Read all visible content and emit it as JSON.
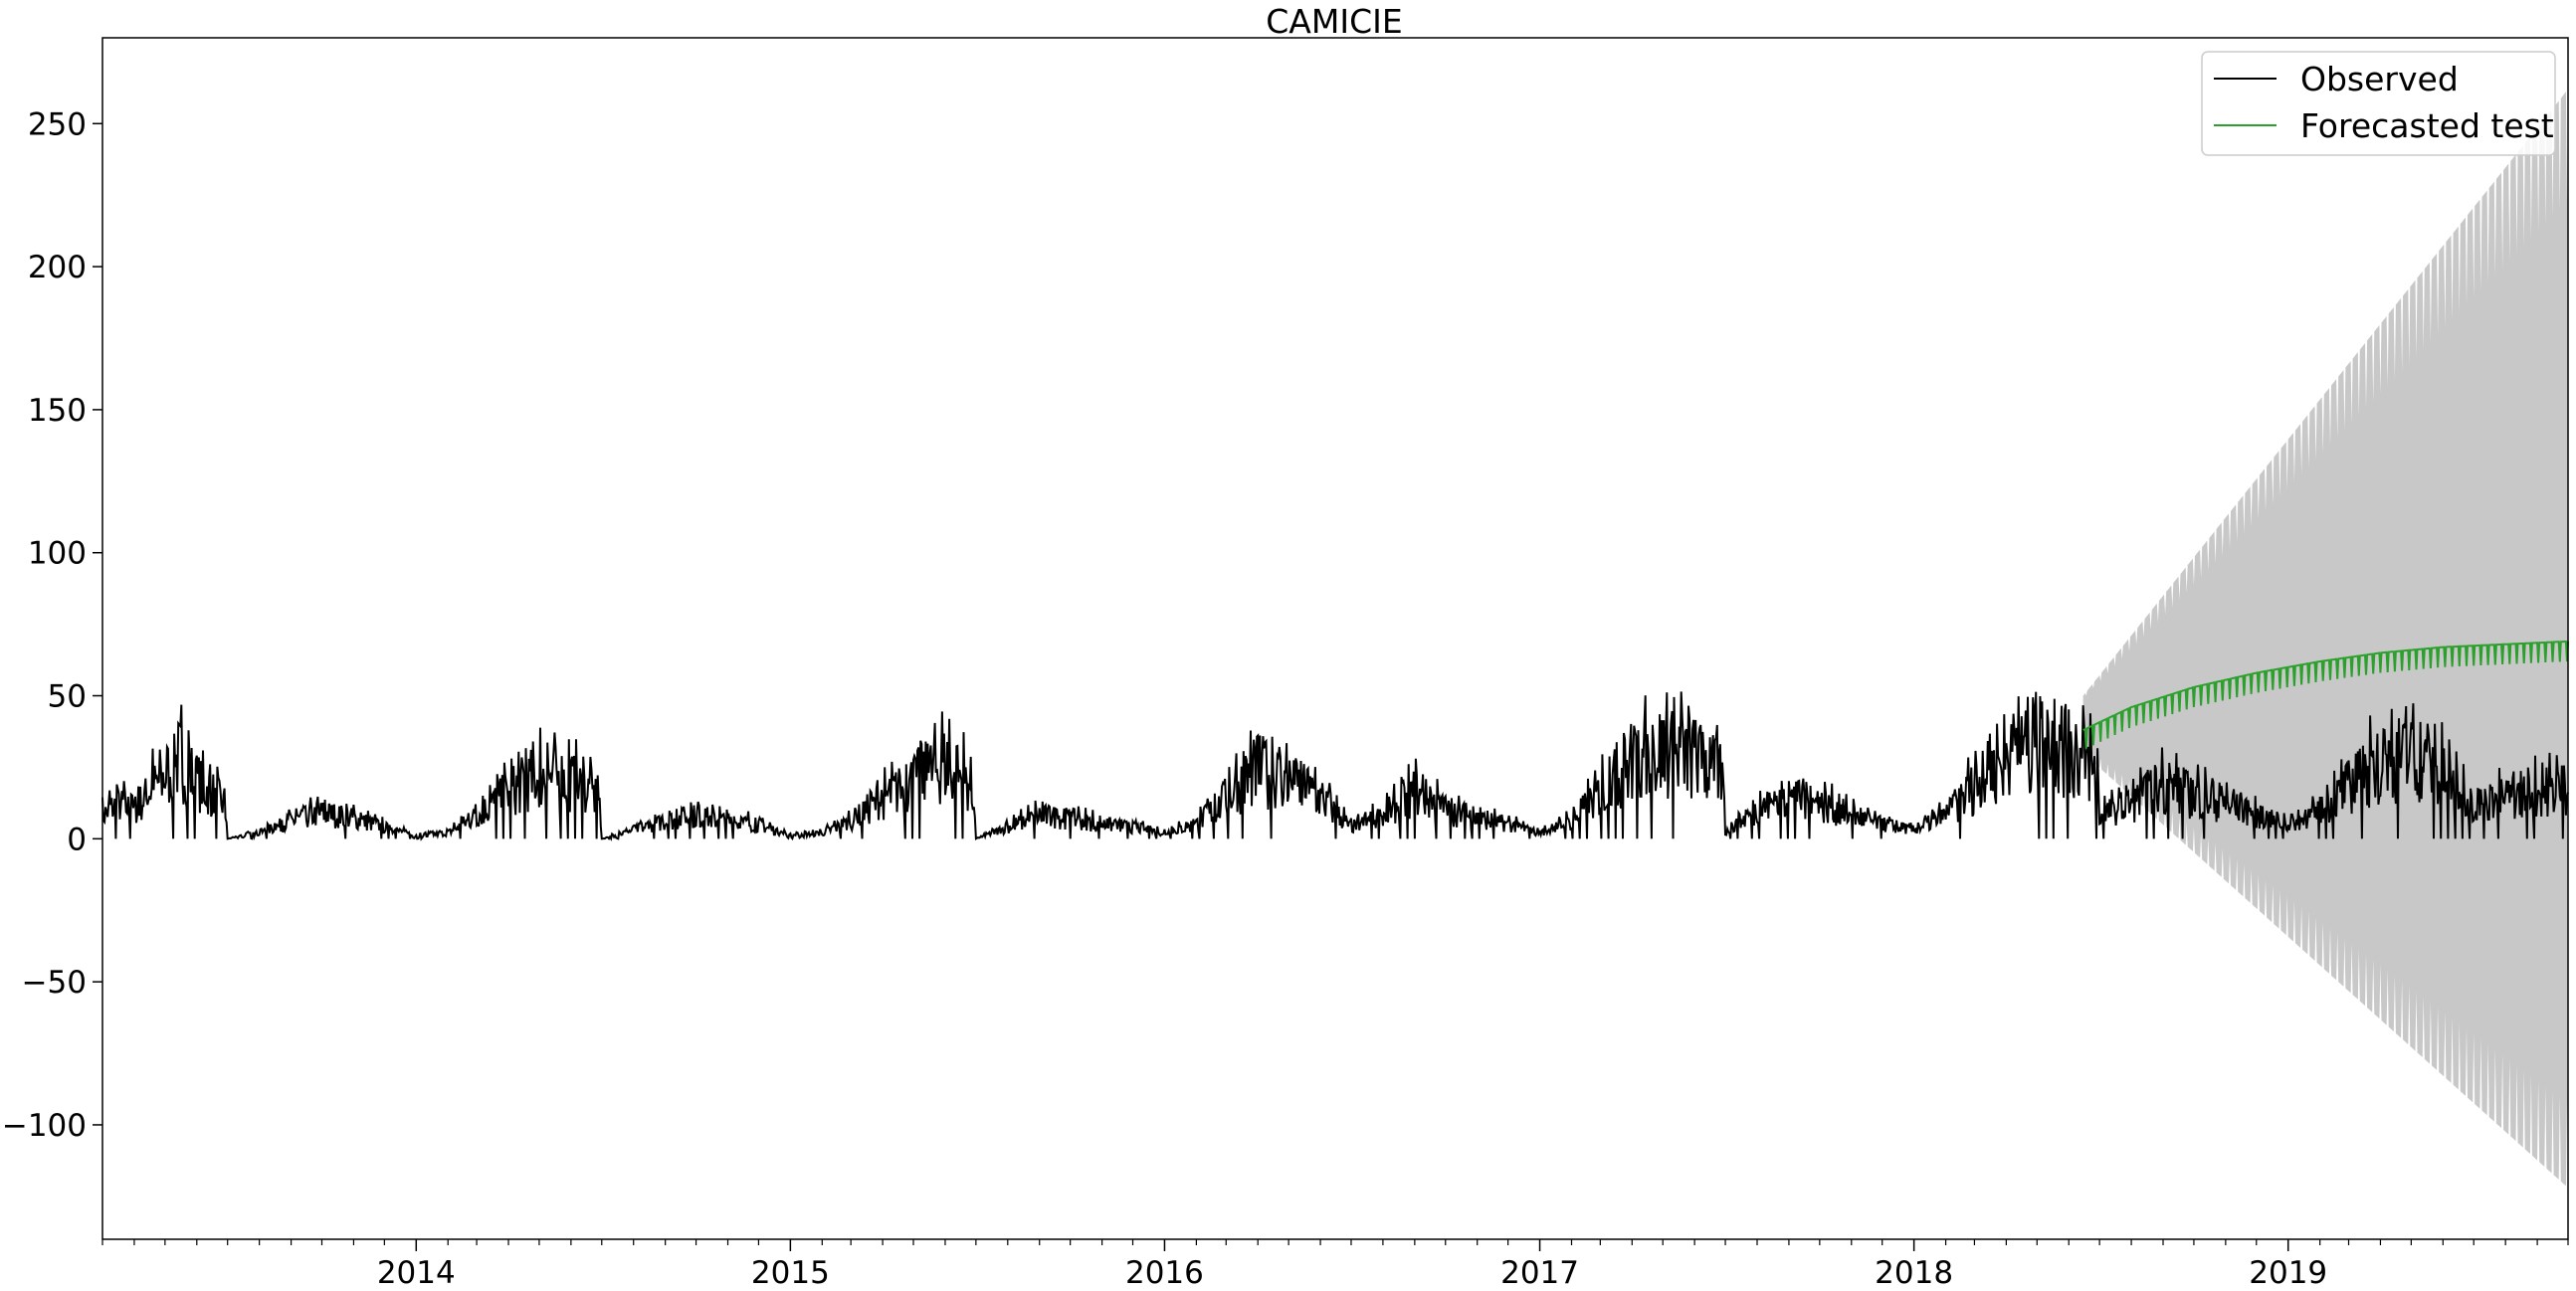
{
  "chart_data": {
    "type": "line",
    "title": "CAMICIE",
    "xlabel": "",
    "ylabel": "",
    "x_range": [
      "2013-03-01",
      "2019-10-01"
    ],
    "ylim": [
      -140,
      280
    ],
    "x_ticks": [
      {
        "label": "2014",
        "date": "2014-01-01"
      },
      {
        "label": "2015",
        "date": "2015-01-01"
      },
      {
        "label": "2016",
        "date": "2016-01-01"
      },
      {
        "label": "2017",
        "date": "2017-01-01"
      },
      {
        "label": "2018",
        "date": "2018-01-01"
      },
      {
        "label": "2019",
        "date": "2019-01-01"
      }
    ],
    "y_ticks": [
      {
        "label": "250",
        "value": 250
      },
      {
        "label": "200",
        "value": 200
      },
      {
        "label": "150",
        "value": 150
      },
      {
        "label": "100",
        "value": 100
      },
      {
        "label": "50",
        "value": 50
      },
      {
        "label": "0",
        "value": 0
      },
      {
        "label": "−50",
        "value": -50
      },
      {
        "label": "−100",
        "value": -100
      }
    ],
    "grid": false,
    "legend_position": "top-right",
    "legend": [
      {
        "label": "Observed",
        "color": "#000000"
      },
      {
        "label": "Forecasted test",
        "color": "#2ca02c"
      }
    ],
    "series": [
      {
        "name": "Observed",
        "color": "#000000",
        "points": [
          [
            "2013-03-01",
            8
          ],
          [
            "2013-03-15",
            12
          ],
          [
            "2013-04-01",
            10
          ],
          [
            "2013-04-15",
            16
          ],
          [
            "2013-05-01",
            22
          ],
          [
            "2013-05-15",
            28
          ],
          [
            "2013-06-01",
            20
          ],
          [
            "2013-06-15",
            16
          ],
          [
            "2013-06-28",
            12
          ],
          [
            "2013-07-01",
            0
          ],
          [
            "2013-08-01",
            2
          ],
          [
            "2013-09-01",
            6
          ],
          [
            "2013-10-01",
            9
          ],
          [
            "2013-11-01",
            7
          ],
          [
            "2013-12-01",
            4
          ],
          [
            "2014-01-01",
            1
          ],
          [
            "2014-02-01",
            2
          ],
          [
            "2014-03-01",
            8
          ],
          [
            "2014-04-01",
            16
          ],
          [
            "2014-05-01",
            22
          ],
          [
            "2014-06-01",
            20
          ],
          [
            "2014-06-28",
            14
          ],
          [
            "2014-07-01",
            0
          ],
          [
            "2014-08-01",
            3
          ],
          [
            "2014-09-01",
            6
          ],
          [
            "2014-10-01",
            8
          ],
          [
            "2014-11-01",
            6
          ],
          [
            "2014-12-01",
            5
          ],
          [
            "2015-01-01",
            1
          ],
          [
            "2015-02-01",
            2
          ],
          [
            "2015-03-01",
            6
          ],
          [
            "2015-04-01",
            14
          ],
          [
            "2015-05-01",
            20
          ],
          [
            "2015-06-01",
            26
          ],
          [
            "2015-06-28",
            18
          ],
          [
            "2015-07-01",
            0
          ],
          [
            "2015-08-01",
            4
          ],
          [
            "2015-09-01",
            8
          ],
          [
            "2015-10-01",
            7
          ],
          [
            "2015-11-01",
            5
          ],
          [
            "2015-12-01",
            4
          ],
          [
            "2016-01-01",
            2
          ],
          [
            "2016-02-01",
            5
          ],
          [
            "2016-03-01",
            14
          ],
          [
            "2016-04-01",
            24
          ],
          [
            "2016-05-01",
            20
          ],
          [
            "2016-06-01",
            14
          ],
          [
            "2016-07-01",
            4
          ],
          [
            "2016-08-01",
            8
          ],
          [
            "2016-09-01",
            16
          ],
          [
            "2016-10-01",
            10
          ],
          [
            "2016-11-01",
            7
          ],
          [
            "2016-12-01",
            5
          ],
          [
            "2017-01-01",
            2
          ],
          [
            "2017-02-01",
            6
          ],
          [
            "2017-03-01",
            16
          ],
          [
            "2017-04-01",
            26
          ],
          [
            "2017-05-01",
            30
          ],
          [
            "2017-06-01",
            28
          ],
          [
            "2017-06-28",
            22
          ],
          [
            "2017-07-01",
            2
          ],
          [
            "2017-08-01",
            10
          ],
          [
            "2017-09-01",
            14
          ],
          [
            "2017-10-01",
            12
          ],
          [
            "2017-11-01",
            8
          ],
          [
            "2017-12-01",
            5
          ],
          [
            "2018-01-01",
            3
          ],
          [
            "2018-02-01",
            8
          ],
          [
            "2018-03-01",
            18
          ],
          [
            "2018-04-01",
            28
          ],
          [
            "2018-05-01",
            34
          ],
          [
            "2018-06-01",
            30
          ],
          [
            "2018-06-28",
            24
          ],
          [
            "2018-07-01",
            8
          ],
          [
            "2018-08-01",
            12
          ],
          [
            "2018-09-01",
            18
          ],
          [
            "2018-10-01",
            15
          ],
          [
            "2018-11-01",
            12
          ],
          [
            "2018-12-01",
            8
          ],
          [
            "2019-01-01",
            5
          ],
          [
            "2019-02-01",
            9
          ],
          [
            "2019-03-01",
            18
          ],
          [
            "2019-04-01",
            26
          ],
          [
            "2019-05-01",
            28
          ],
          [
            "2019-06-01",
            22
          ],
          [
            "2019-07-01",
            12
          ],
          [
            "2019-08-01",
            14
          ],
          [
            "2019-09-01",
            16
          ],
          [
            "2019-10-01",
            18
          ]
        ],
        "spike_amplitude": 0.55
      },
      {
        "name": "Forecasted test",
        "color": "#2ca02c",
        "points": [
          [
            "2018-06-15",
            38
          ],
          [
            "2018-08-01",
            46
          ],
          [
            "2018-10-01",
            53
          ],
          [
            "2018-12-01",
            58
          ],
          [
            "2019-02-01",
            62
          ],
          [
            "2019-04-01",
            65
          ],
          [
            "2019-06-01",
            67
          ],
          [
            "2019-08-01",
            68
          ],
          [
            "2019-10-01",
            69
          ]
        ],
        "weekly_dip": 7
      }
    ],
    "confidence_band": {
      "color": "#c8c8c8",
      "upper": [
        [
          "2018-06-15",
          50
        ],
        [
          "2019-10-01",
          262
        ]
      ],
      "lower": [
        [
          "2018-06-15",
          30
        ],
        [
          "2019-10-01",
          -122
        ]
      ]
    }
  }
}
